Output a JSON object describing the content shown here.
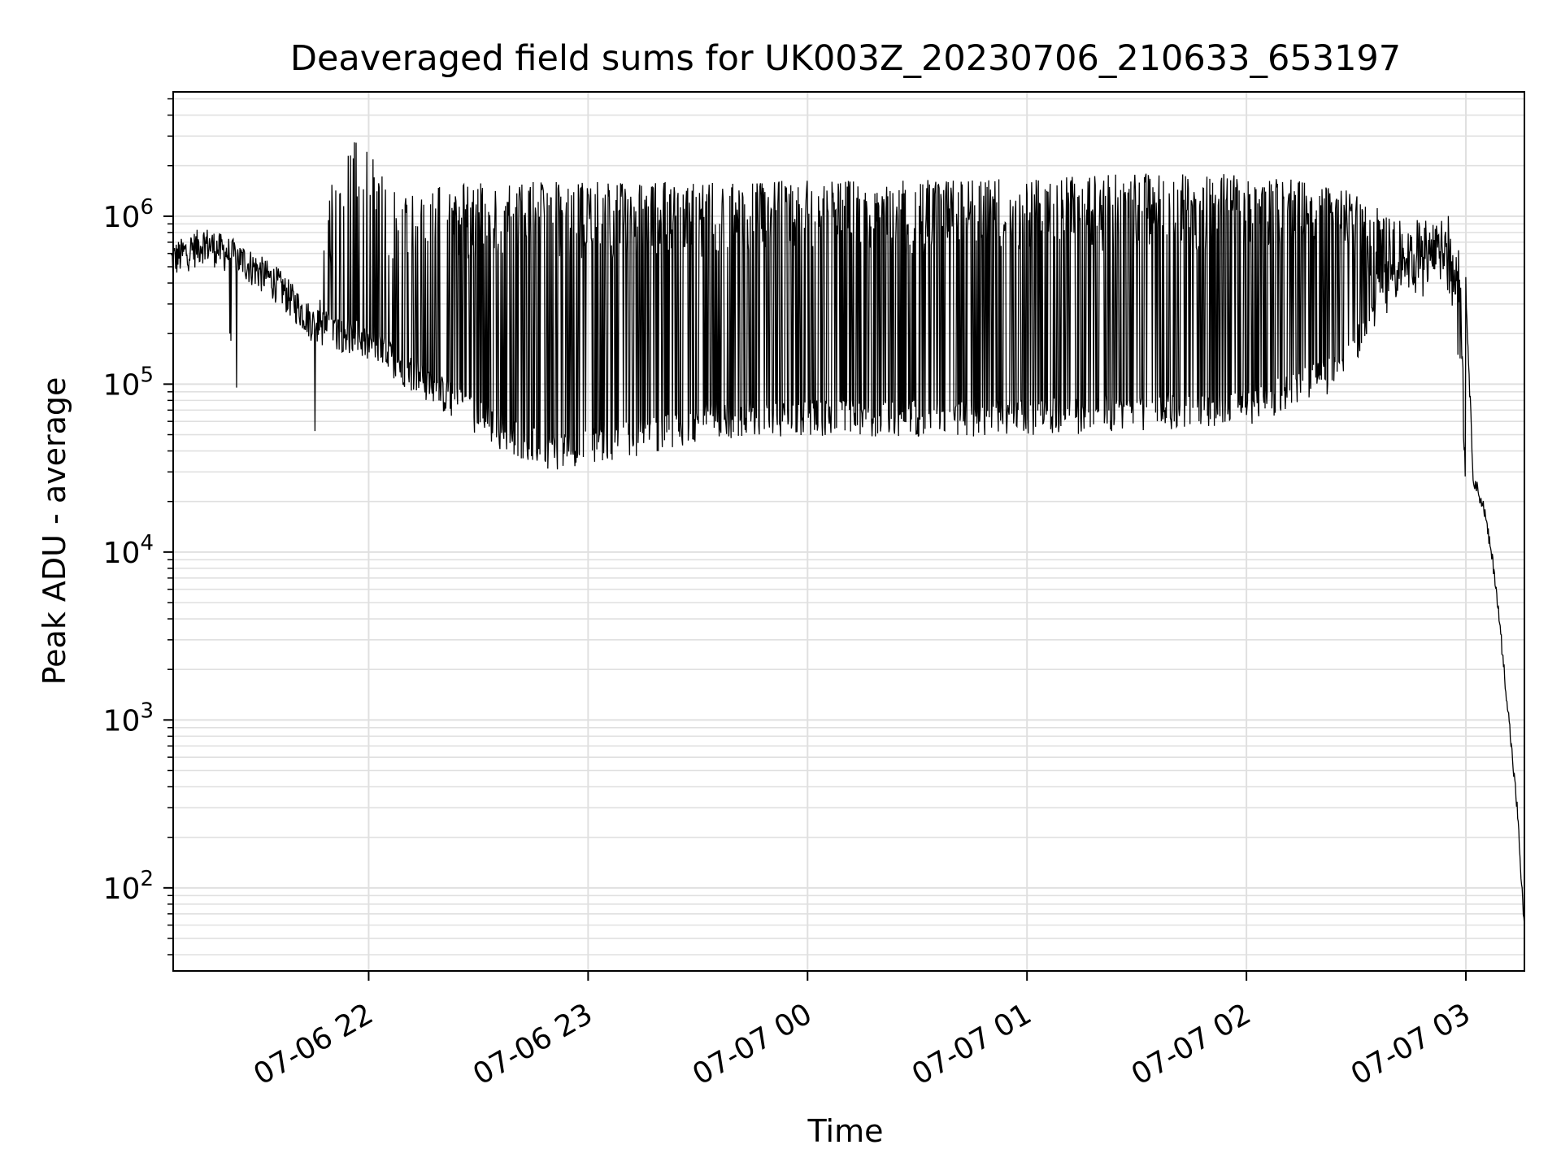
{
  "chart_data": {
    "type": "line",
    "title": "Deaveraged field sums for UK003Z_20230706_210633_653197",
    "xlabel": "Time",
    "ylabel": "Peak ADU - average",
    "yscale": "log",
    "ylim": [
      32,
      5500000
    ],
    "xlim": [
      "2023-07-06 21:06:33",
      "2023-07-07 03:16:00"
    ],
    "grid": true,
    "line_color": "#000000",
    "grid_color": "#e0e0e0",
    "x_ticks": [
      {
        "value": "2023-07-06 22:00",
        "label": "07-06 22"
      },
      {
        "value": "2023-07-06 23:00",
        "label": "07-06 23"
      },
      {
        "value": "2023-07-07 00:00",
        "label": "07-07 00"
      },
      {
        "value": "2023-07-07 01:00",
        "label": "07-07 01"
      },
      {
        "value": "2023-07-07 02:00",
        "label": "07-07 02"
      },
      {
        "value": "2023-07-07 03:00",
        "label": "07-07 03"
      }
    ],
    "y_ticks": [
      {
        "value": 100,
        "base": "10",
        "exp": "2"
      },
      {
        "value": 1000,
        "base": "10",
        "exp": "3"
      },
      {
        "value": 10000,
        "base": "10",
        "exp": "4"
      },
      {
        "value": 100000,
        "base": "10",
        "exp": "5"
      },
      {
        "value": 1000000,
        "base": "10",
        "exp": "6"
      }
    ],
    "series": [
      {
        "x": [
          "2023-07-06 21:06",
          "2023-07-06 21:15",
          "2023-07-06 21:25",
          "2023-07-06 21:35",
          "2023-07-06 21:45",
          "2023-07-06 21:55",
          "2023-07-06 22:05",
          "2023-07-06 22:20",
          "2023-07-06 22:35",
          "2023-07-06 22:50",
          "2023-07-06 23:00",
          "2023-07-06 23:15",
          "2023-07-06 23:30",
          "2023-07-06 23:45",
          "2023-07-07 00:00",
          "2023-07-07 00:30",
          "2023-07-07 01:00",
          "2023-07-07 01:30",
          "2023-07-07 02:00",
          "2023-07-07 02:25",
          "2023-07-07 02:40",
          "2023-07-07 02:55",
          "2023-07-07 03:00",
          "2023-07-07 03:02",
          "2023-07-07 03:05",
          "2023-07-07 03:08",
          "2023-07-07 03:11",
          "2023-07-07 03:14",
          "2023-07-07 03:16"
        ],
        "baseline": [
          550000,
          700000,
          560000,
          400000,
          230000,
          200000,
          150000,
          90000,
          55000,
          40000,
          45000,
          50000,
          60000,
          65000,
          65000,
          65000,
          65000,
          70000,
          75000,
          120000,
          400000,
          850000,
          350000,
          28000,
          18000,
          7000,
          1500,
          300,
          55
        ],
        "peak_spikes": [
          900000,
          1100000,
          0,
          0,
          0,
          3200000,
          1600000,
          1600000,
          1600000,
          1600000,
          1600000,
          1600000,
          1600000,
          1600000,
          1650000,
          1650000,
          1700000,
          1800000,
          1800000,
          1500000,
          1000000,
          900000,
          0,
          0,
          0,
          0,
          0,
          0,
          0
        ]
      }
    ]
  }
}
